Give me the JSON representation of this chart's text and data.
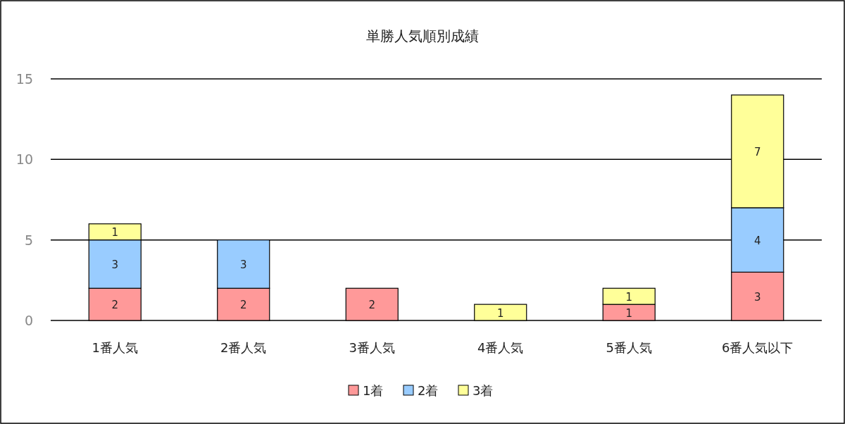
{
  "chart_data": {
    "type": "bar",
    "title": "単勝人気順別成績",
    "categories": [
      "1番人気",
      "2番人気",
      "3番人気",
      "4番人気",
      "5番人気",
      "6番人気以下"
    ],
    "stacked": true,
    "ylim": [
      0,
      15
    ],
    "yticks": [
      0,
      5,
      10,
      15
    ],
    "grid": "y",
    "legend": "bottom",
    "data_labels": true,
    "series": [
      {
        "name": "1着",
        "color": "#ff9999",
        "values": [
          2,
          2,
          2,
          null,
          1,
          3
        ]
      },
      {
        "name": "2着",
        "color": "#99ccff",
        "values": [
          3,
          3,
          null,
          null,
          null,
          4
        ]
      },
      {
        "name": "3着",
        "color": "#ffff99",
        "values": [
          1,
          null,
          null,
          1,
          1,
          7
        ]
      }
    ]
  }
}
